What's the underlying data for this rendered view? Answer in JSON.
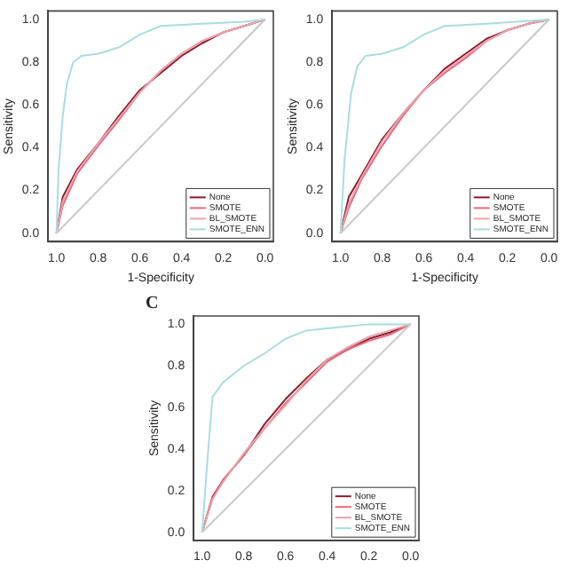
{
  "chart_data": [
    {
      "type": "line",
      "xlabel": "1-Specificity",
      "ylabel": "Sensitivity",
      "xlim": [
        1.04,
        -0.04
      ],
      "ylim": [
        -0.04,
        1.04
      ],
      "xticks": [
        {
          "value": 1,
          "label": "1.0"
        },
        {
          "value": 0.8,
          "label": "0.8"
        },
        {
          "value": 0.6,
          "label": "0.6"
        },
        {
          "value": 0.4,
          "label": "0.4"
        },
        {
          "value": 0.2,
          "label": "0.2"
        },
        {
          "value": 0,
          "label": "0.0"
        }
      ],
      "yticks": [
        {
          "value": 0,
          "label": "0.0"
        },
        {
          "value": 0.2,
          "label": "0.2"
        },
        {
          "value": 0.4,
          "label": "0.4"
        },
        {
          "value": 0.6,
          "label": "0.6"
        },
        {
          "value": 0.8,
          "label": "0.8"
        },
        {
          "value": 1,
          "label": "1.0"
        }
      ],
      "grid": false,
      "legend": "bottom right",
      "line_style": "solid",
      "series": [
        {
          "color": "#c8c8c8",
          "x": [
            1,
            0
          ],
          "values": [
            0,
            1
          ]
        },
        {
          "name": "SMOTE_ENN",
          "color": "#a8dde0",
          "x": [
            1,
            0.99,
            0.97,
            0.95,
            0.92,
            0.88,
            0.8,
            0.7,
            0.6,
            0.5,
            0.3,
            0.1,
            0
          ],
          "values": [
            0,
            0.3,
            0.55,
            0.7,
            0.8,
            0.83,
            0.84,
            0.87,
            0.93,
            0.97,
            0.98,
            0.99,
            1
          ]
        },
        {
          "name": "BL_SMOTE",
          "color": "#e9a3ad",
          "x": [
            1,
            0.97,
            0.9,
            0.8,
            0.7,
            0.6,
            0.5,
            0.4,
            0.3,
            0.2,
            0.1,
            0
          ],
          "values": [
            0,
            0.15,
            0.29,
            0.42,
            0.54,
            0.66,
            0.76,
            0.84,
            0.9,
            0.94,
            0.97,
            1
          ]
        },
        {
          "name": "SMOTE",
          "color": "#e8677a",
          "x": [
            1,
            0.97,
            0.9,
            0.8,
            0.7,
            0.6,
            0.5,
            0.4,
            0.3,
            0.2,
            0.1,
            0
          ],
          "values": [
            0,
            0.13,
            0.28,
            0.41,
            0.53,
            0.66,
            0.76,
            0.84,
            0.9,
            0.94,
            0.97,
            1
          ]
        },
        {
          "name": "None",
          "color": "#8b1a2a",
          "x": [
            1,
            0.97,
            0.9,
            0.8,
            0.7,
            0.6,
            0.5,
            0.4,
            0.3,
            0.2,
            0.1,
            0
          ],
          "values": [
            0,
            0.17,
            0.3,
            0.42,
            0.55,
            0.67,
            0.75,
            0.83,
            0.89,
            0.94,
            0.97,
            1
          ]
        }
      ]
    },
    {
      "type": "line",
      "xlabel": "1-Specificity",
      "ylabel": "Sensitivity",
      "xlim": [
        1.04,
        -0.04
      ],
      "ylim": [
        -0.04,
        1.04
      ],
      "xticks": [
        {
          "value": 1,
          "label": "1.0"
        },
        {
          "value": 0.8,
          "label": "0.8"
        },
        {
          "value": 0.6,
          "label": "0.6"
        },
        {
          "value": 0.4,
          "label": "0.4"
        },
        {
          "value": 0.2,
          "label": "0.2"
        },
        {
          "value": 0,
          "label": "0.0"
        }
      ],
      "yticks": [
        {
          "value": 0,
          "label": "0.0"
        },
        {
          "value": 0.2,
          "label": "0.2"
        },
        {
          "value": 0.4,
          "label": "0.4"
        },
        {
          "value": 0.6,
          "label": "0.6"
        },
        {
          "value": 0.8,
          "label": "0.8"
        },
        {
          "value": 1,
          "label": "1.0"
        }
      ],
      "grid": false,
      "legend": "bottom right",
      "line_style": "solid",
      "series": [
        {
          "color": "#c8c8c8",
          "x": [
            1,
            0
          ],
          "values": [
            0,
            1
          ]
        },
        {
          "name": "SMOTE_ENN",
          "color": "#a8dde0",
          "x": [
            1,
            0.98,
            0.95,
            0.92,
            0.88,
            0.8,
            0.7,
            0.6,
            0.5,
            0.3,
            0
          ],
          "values": [
            0,
            0.35,
            0.65,
            0.78,
            0.83,
            0.84,
            0.87,
            0.93,
            0.97,
            0.98,
            1
          ]
        },
        {
          "name": "BL_SMOTE",
          "color": "#e9a3ad",
          "x": [
            1,
            0.96,
            0.9,
            0.8,
            0.7,
            0.6,
            0.5,
            0.4,
            0.3,
            0.2,
            0.1,
            0
          ],
          "values": [
            0,
            0.14,
            0.26,
            0.43,
            0.56,
            0.67,
            0.76,
            0.83,
            0.9,
            0.95,
            0.98,
            1
          ]
        },
        {
          "name": "SMOTE",
          "color": "#e8677a",
          "x": [
            1,
            0.96,
            0.9,
            0.8,
            0.7,
            0.6,
            0.5,
            0.4,
            0.3,
            0.2,
            0.1,
            0
          ],
          "values": [
            0,
            0.12,
            0.25,
            0.41,
            0.55,
            0.67,
            0.75,
            0.82,
            0.9,
            0.95,
            0.98,
            1
          ]
        },
        {
          "name": "None",
          "color": "#8b1a2a",
          "x": [
            1,
            0.96,
            0.9,
            0.8,
            0.7,
            0.6,
            0.5,
            0.4,
            0.3,
            0.2,
            0.1,
            0
          ],
          "values": [
            0,
            0.17,
            0.27,
            0.44,
            0.56,
            0.67,
            0.77,
            0.84,
            0.91,
            0.95,
            0.98,
            1
          ]
        }
      ]
    },
    {
      "type": "line",
      "title": "C",
      "ylabel": "Sensitivity",
      "xlim": [
        1.04,
        -0.04
      ],
      "ylim": [
        -0.04,
        1.04
      ],
      "xticks": [
        {
          "value": 1,
          "label": "1.0"
        },
        {
          "value": 0.8,
          "label": "0.8"
        },
        {
          "value": 0.6,
          "label": "0.6"
        },
        {
          "value": 0.4,
          "label": "0.4"
        },
        {
          "value": 0.2,
          "label": "0.2"
        },
        {
          "value": 0,
          "label": "0.0"
        }
      ],
      "yticks": [
        {
          "value": 0,
          "label": "0.0"
        },
        {
          "value": 0.2,
          "label": "0.2"
        },
        {
          "value": 0.4,
          "label": "0.4"
        },
        {
          "value": 0.6,
          "label": "0.6"
        },
        {
          "value": 0.8,
          "label": "0.8"
        },
        {
          "value": 1,
          "label": "1.0"
        }
      ],
      "grid": false,
      "legend": "bottom right",
      "line_style": "solid",
      "series": [
        {
          "color": "#c8c8c8",
          "x": [
            1,
            0
          ],
          "values": [
            0,
            1
          ]
        },
        {
          "name": "SMOTE_ENN",
          "color": "#a8dde0",
          "x": [
            1,
            0.97,
            0.95,
            0.9,
            0.8,
            0.7,
            0.6,
            0.5,
            0.4,
            0.2,
            0
          ],
          "values": [
            0,
            0.4,
            0.65,
            0.72,
            0.8,
            0.86,
            0.93,
            0.97,
            0.98,
            1,
            1
          ]
        },
        {
          "name": "BL_SMOTE",
          "color": "#e9a3ad",
          "x": [
            1,
            0.95,
            0.9,
            0.8,
            0.7,
            0.6,
            0.5,
            0.4,
            0.3,
            0.2,
            0.1,
            0
          ],
          "values": [
            0,
            0.16,
            0.24,
            0.38,
            0.5,
            0.61,
            0.73,
            0.83,
            0.89,
            0.94,
            0.97,
            1
          ]
        },
        {
          "name": "SMOTE",
          "color": "#e8677a",
          "x": [
            1,
            0.95,
            0.9,
            0.8,
            0.7,
            0.6,
            0.5,
            0.4,
            0.3,
            0.2,
            0.1,
            0
          ],
          "values": [
            0,
            0.16,
            0.25,
            0.37,
            0.5,
            0.62,
            0.72,
            0.82,
            0.88,
            0.92,
            0.95,
            1
          ]
        },
        {
          "name": "None",
          "color": "#8b1a2a",
          "x": [
            1,
            0.95,
            0.9,
            0.8,
            0.7,
            0.6,
            0.5,
            0.4,
            0.3,
            0.2,
            0.1,
            0
          ],
          "values": [
            0,
            0.17,
            0.25,
            0.37,
            0.52,
            0.64,
            0.74,
            0.83,
            0.88,
            0.93,
            0.96,
            1
          ]
        }
      ]
    }
  ]
}
